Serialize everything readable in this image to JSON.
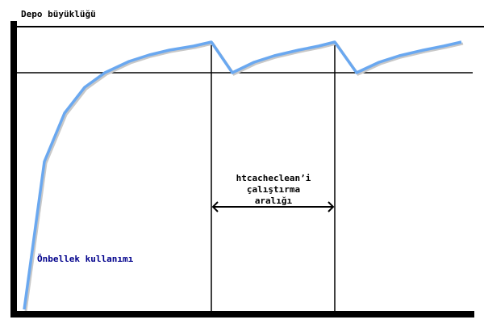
{
  "diagram": {
    "y_axis_label": "Depo büyüklüğü",
    "curve_label": "Önbellek kullanımı",
    "interval_label_lines": [
      "htcacheclean’i",
      "çalıştırma",
      "aralığı"
    ],
    "colors": {
      "axis": "#000000",
      "curve": "#6aa8f0",
      "curve_label": "#00008b",
      "text": "#000000"
    }
  }
}
